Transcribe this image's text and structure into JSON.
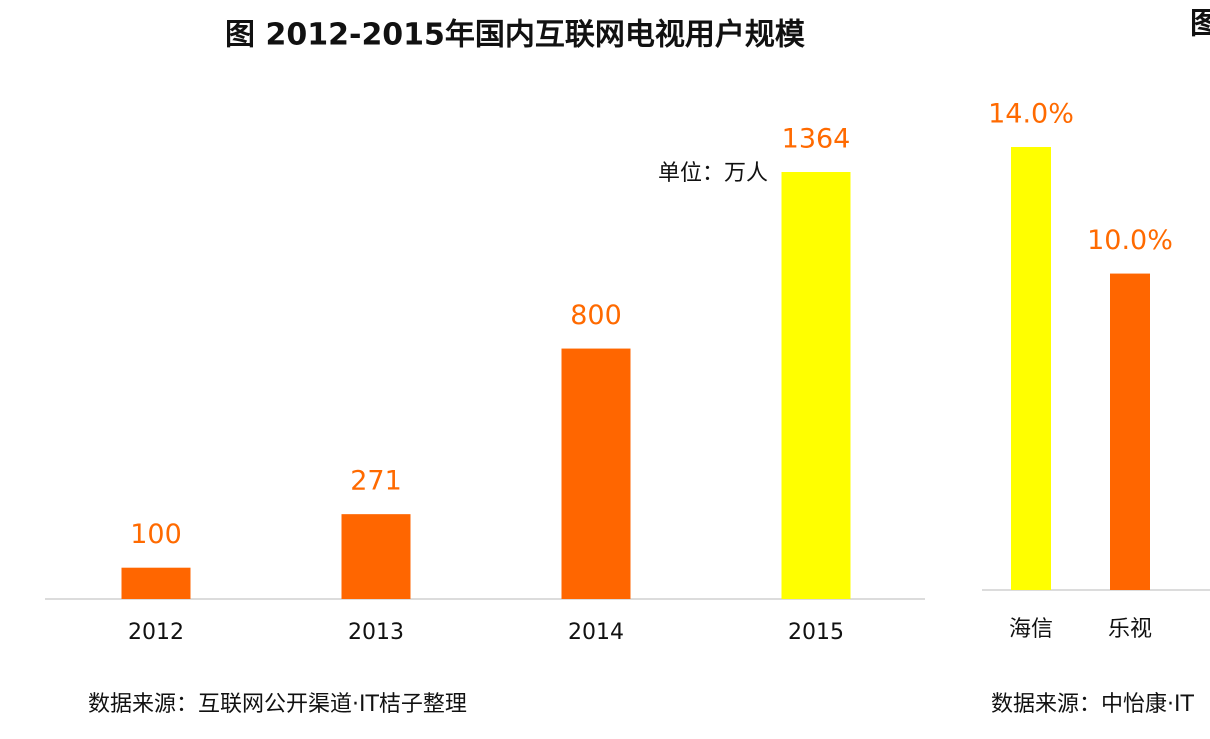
{
  "chart_data": [
    {
      "type": "bar",
      "title": "图 2012-2015年国内互联网电视用户规模",
      "unit_label": "单位：万人",
      "categories": [
        "2012",
        "2013",
        "2014",
        "2015"
      ],
      "values": [
        100,
        271,
        800,
        1364
      ],
      "colors": [
        "#ff6600",
        "#ff6600",
        "#ff6600",
        "#ffff00"
      ],
      "source": "数据来源：互联网公开渠道·IT桔子整理"
    },
    {
      "type": "bar",
      "title": "图",
      "categories": [
        "海信",
        "乐视"
      ],
      "values": [
        14.0,
        10.0
      ],
      "value_labels": [
        "14.0%",
        "10.0%"
      ],
      "colors": [
        "#ffff00",
        "#ff6600"
      ],
      "source": "数据来源：中怡康·IT"
    }
  ]
}
